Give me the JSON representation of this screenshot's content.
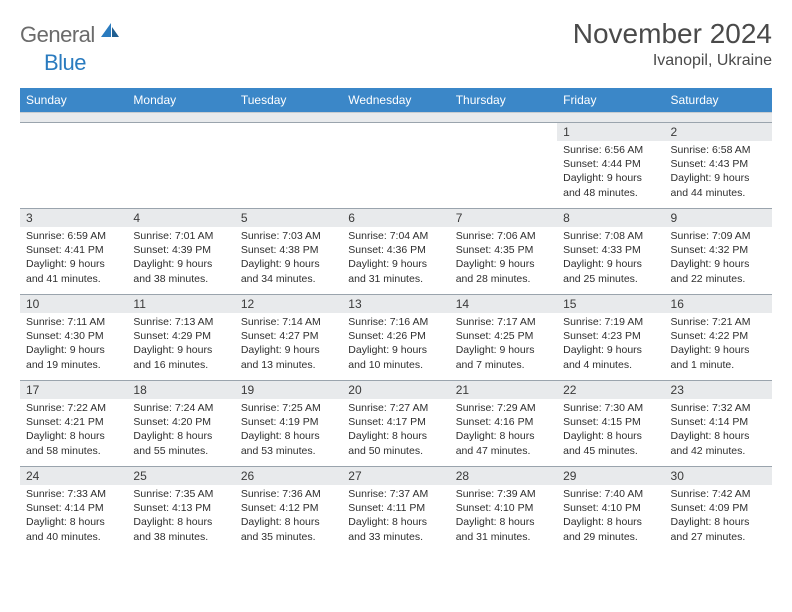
{
  "brand": {
    "name1": "General",
    "name2": "Blue",
    "icon_color": "#2a7bbf",
    "text_color_gray": "#6b6b6b"
  },
  "title": "November 2024",
  "location": "Ivanopil, Ukraine",
  "colors": {
    "header_bg": "#3b87c8",
    "header_fg": "#ffffff",
    "daynum_bg": "#e8eaec",
    "border": "#9aa4ad"
  },
  "weekdays": [
    "Sunday",
    "Monday",
    "Tuesday",
    "Wednesday",
    "Thursday",
    "Friday",
    "Saturday"
  ],
  "weeks": [
    [
      null,
      null,
      null,
      null,
      null,
      {
        "n": "1",
        "sr": "Sunrise: 6:56 AM",
        "ss": "Sunset: 4:44 PM",
        "d1": "Daylight: 9 hours",
        "d2": "and 48 minutes."
      },
      {
        "n": "2",
        "sr": "Sunrise: 6:58 AM",
        "ss": "Sunset: 4:43 PM",
        "d1": "Daylight: 9 hours",
        "d2": "and 44 minutes."
      }
    ],
    [
      {
        "n": "3",
        "sr": "Sunrise: 6:59 AM",
        "ss": "Sunset: 4:41 PM",
        "d1": "Daylight: 9 hours",
        "d2": "and 41 minutes."
      },
      {
        "n": "4",
        "sr": "Sunrise: 7:01 AM",
        "ss": "Sunset: 4:39 PM",
        "d1": "Daylight: 9 hours",
        "d2": "and 38 minutes."
      },
      {
        "n": "5",
        "sr": "Sunrise: 7:03 AM",
        "ss": "Sunset: 4:38 PM",
        "d1": "Daylight: 9 hours",
        "d2": "and 34 minutes."
      },
      {
        "n": "6",
        "sr": "Sunrise: 7:04 AM",
        "ss": "Sunset: 4:36 PM",
        "d1": "Daylight: 9 hours",
        "d2": "and 31 minutes."
      },
      {
        "n": "7",
        "sr": "Sunrise: 7:06 AM",
        "ss": "Sunset: 4:35 PM",
        "d1": "Daylight: 9 hours",
        "d2": "and 28 minutes."
      },
      {
        "n": "8",
        "sr": "Sunrise: 7:08 AM",
        "ss": "Sunset: 4:33 PM",
        "d1": "Daylight: 9 hours",
        "d2": "and 25 minutes."
      },
      {
        "n": "9",
        "sr": "Sunrise: 7:09 AM",
        "ss": "Sunset: 4:32 PM",
        "d1": "Daylight: 9 hours",
        "d2": "and 22 minutes."
      }
    ],
    [
      {
        "n": "10",
        "sr": "Sunrise: 7:11 AM",
        "ss": "Sunset: 4:30 PM",
        "d1": "Daylight: 9 hours",
        "d2": "and 19 minutes."
      },
      {
        "n": "11",
        "sr": "Sunrise: 7:13 AM",
        "ss": "Sunset: 4:29 PM",
        "d1": "Daylight: 9 hours",
        "d2": "and 16 minutes."
      },
      {
        "n": "12",
        "sr": "Sunrise: 7:14 AM",
        "ss": "Sunset: 4:27 PM",
        "d1": "Daylight: 9 hours",
        "d2": "and 13 minutes."
      },
      {
        "n": "13",
        "sr": "Sunrise: 7:16 AM",
        "ss": "Sunset: 4:26 PM",
        "d1": "Daylight: 9 hours",
        "d2": "and 10 minutes."
      },
      {
        "n": "14",
        "sr": "Sunrise: 7:17 AM",
        "ss": "Sunset: 4:25 PM",
        "d1": "Daylight: 9 hours",
        "d2": "and 7 minutes."
      },
      {
        "n": "15",
        "sr": "Sunrise: 7:19 AM",
        "ss": "Sunset: 4:23 PM",
        "d1": "Daylight: 9 hours",
        "d2": "and 4 minutes."
      },
      {
        "n": "16",
        "sr": "Sunrise: 7:21 AM",
        "ss": "Sunset: 4:22 PM",
        "d1": "Daylight: 9 hours",
        "d2": "and 1 minute."
      }
    ],
    [
      {
        "n": "17",
        "sr": "Sunrise: 7:22 AM",
        "ss": "Sunset: 4:21 PM",
        "d1": "Daylight: 8 hours",
        "d2": "and 58 minutes."
      },
      {
        "n": "18",
        "sr": "Sunrise: 7:24 AM",
        "ss": "Sunset: 4:20 PM",
        "d1": "Daylight: 8 hours",
        "d2": "and 55 minutes."
      },
      {
        "n": "19",
        "sr": "Sunrise: 7:25 AM",
        "ss": "Sunset: 4:19 PM",
        "d1": "Daylight: 8 hours",
        "d2": "and 53 minutes."
      },
      {
        "n": "20",
        "sr": "Sunrise: 7:27 AM",
        "ss": "Sunset: 4:17 PM",
        "d1": "Daylight: 8 hours",
        "d2": "and 50 minutes."
      },
      {
        "n": "21",
        "sr": "Sunrise: 7:29 AM",
        "ss": "Sunset: 4:16 PM",
        "d1": "Daylight: 8 hours",
        "d2": "and 47 minutes."
      },
      {
        "n": "22",
        "sr": "Sunrise: 7:30 AM",
        "ss": "Sunset: 4:15 PM",
        "d1": "Daylight: 8 hours",
        "d2": "and 45 minutes."
      },
      {
        "n": "23",
        "sr": "Sunrise: 7:32 AM",
        "ss": "Sunset: 4:14 PM",
        "d1": "Daylight: 8 hours",
        "d2": "and 42 minutes."
      }
    ],
    [
      {
        "n": "24",
        "sr": "Sunrise: 7:33 AM",
        "ss": "Sunset: 4:14 PM",
        "d1": "Daylight: 8 hours",
        "d2": "and 40 minutes."
      },
      {
        "n": "25",
        "sr": "Sunrise: 7:35 AM",
        "ss": "Sunset: 4:13 PM",
        "d1": "Daylight: 8 hours",
        "d2": "and 38 minutes."
      },
      {
        "n": "26",
        "sr": "Sunrise: 7:36 AM",
        "ss": "Sunset: 4:12 PM",
        "d1": "Daylight: 8 hours",
        "d2": "and 35 minutes."
      },
      {
        "n": "27",
        "sr": "Sunrise: 7:37 AM",
        "ss": "Sunset: 4:11 PM",
        "d1": "Daylight: 8 hours",
        "d2": "and 33 minutes."
      },
      {
        "n": "28",
        "sr": "Sunrise: 7:39 AM",
        "ss": "Sunset: 4:10 PM",
        "d1": "Daylight: 8 hours",
        "d2": "and 31 minutes."
      },
      {
        "n": "29",
        "sr": "Sunrise: 7:40 AM",
        "ss": "Sunset: 4:10 PM",
        "d1": "Daylight: 8 hours",
        "d2": "and 29 minutes."
      },
      {
        "n": "30",
        "sr": "Sunrise: 7:42 AM",
        "ss": "Sunset: 4:09 PM",
        "d1": "Daylight: 8 hours",
        "d2": "and 27 minutes."
      }
    ]
  ]
}
